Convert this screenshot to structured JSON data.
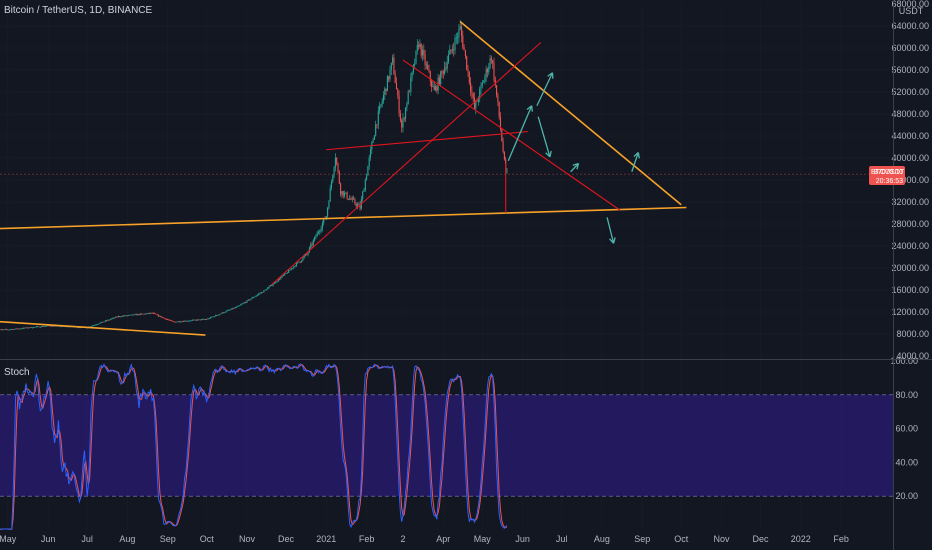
{
  "header": {
    "symbol_title": "Bitcoin / TetherUS, 1D, BINANCE",
    "currency": "USDT"
  },
  "price_badge": {
    "ticker": "BTCUSDT",
    "price": "37070.10",
    "countdown": "20:36:53",
    "color": "#ef5350"
  },
  "oscillator": {
    "label": "Stoch",
    "band_color": "#311b92",
    "k_color": "#2962ff",
    "d_color": "#ef5350"
  },
  "colors": {
    "background": "#131722",
    "up_candle": "#26a69a",
    "down_candle": "#ef5350",
    "orange_line": "#f7a128",
    "red_line": "#e0151e",
    "arrow": "#4db6ac",
    "grid": "#2a2e39"
  },
  "chart_data": [
    {
      "type": "candlestick",
      "title": "Bitcoin / TetherUS, 1D, BINANCE",
      "ylabel": "USDT",
      "y_scale": "linear",
      "ylim": [
        4000,
        68000
      ],
      "y_ticks": [
        4000,
        8000,
        12000,
        16000,
        20000,
        24000,
        28000,
        32000,
        36000,
        40000,
        44000,
        48000,
        52000,
        56000,
        60000,
        64000,
        68000
      ],
      "y_tick_labels": [
        "4000.00",
        "8000.00",
        "12000.00",
        "16000.00",
        "20000.00",
        "24000.00",
        "28000.00",
        "32000.00",
        "36000.00",
        "40000.00",
        "44000.00",
        "48000.00",
        "52000.00",
        "56000.00",
        "60000.00",
        "64000.00",
        "68000.00"
      ],
      "x_tick_labels": [
        "May",
        "Jun",
        "Jul",
        "Aug",
        "Sep",
        "Oct",
        "Nov",
        "Dec",
        "2021",
        "Feb",
        "2",
        "Apr",
        "May",
        "Jun",
        "Jul",
        "Aug",
        "Sep",
        "Oct",
        "Nov",
        "Dec",
        "2022",
        "Feb"
      ],
      "x_tick_dates": [
        "2020-05-01",
        "2020-06-01",
        "2020-07-01",
        "2020-08-01",
        "2020-09-01",
        "2020-10-01",
        "2020-11-01",
        "2020-12-01",
        "2021-01-01",
        "2021-02-01",
        "2021-03-01",
        "2021-04-01",
        "2021-05-01",
        "2021-06-01",
        "2021-07-01",
        "2021-08-01",
        "2021-09-01",
        "2021-10-01",
        "2021-11-01",
        "2021-12-01",
        "2022-01-01",
        "2022-02-01"
      ],
      "price_anchors": [
        {
          "date": "2020-05-01",
          "price": 8800
        },
        {
          "date": "2020-06-01",
          "price": 9500
        },
        {
          "date": "2020-07-01",
          "price": 9200
        },
        {
          "date": "2020-07-25",
          "price": 11200
        },
        {
          "date": "2020-08-20",
          "price": 11800
        },
        {
          "date": "2020-09-05",
          "price": 10200
        },
        {
          "date": "2020-10-01",
          "price": 10700
        },
        {
          "date": "2020-10-25",
          "price": 13000
        },
        {
          "date": "2020-11-15",
          "price": 16000
        },
        {
          "date": "2020-12-01",
          "price": 19000
        },
        {
          "date": "2020-12-17",
          "price": 22500
        },
        {
          "date": "2021-01-01",
          "price": 29500
        },
        {
          "date": "2021-01-08",
          "price": 40500
        },
        {
          "date": "2021-01-12",
          "price": 34000
        },
        {
          "date": "2021-01-27",
          "price": 31000
        },
        {
          "date": "2021-02-08",
          "price": 46000
        },
        {
          "date": "2021-02-21",
          "price": 57500
        },
        {
          "date": "2021-02-28",
          "price": 45500
        },
        {
          "date": "2021-03-13",
          "price": 61000
        },
        {
          "date": "2021-03-25",
          "price": 52000
        },
        {
          "date": "2021-04-14",
          "price": 63500
        },
        {
          "date": "2021-04-25",
          "price": 49000
        },
        {
          "date": "2021-05-08",
          "price": 58500
        },
        {
          "date": "2021-05-13",
          "price": 49500
        },
        {
          "date": "2021-05-19",
          "price": 37000
        },
        {
          "date": "2021-05-20",
          "price": 37070
        }
      ]
    },
    {
      "type": "line",
      "title": "Stoch",
      "ylim": [
        0,
        100
      ],
      "y_ticks": [
        20,
        40,
        60,
        80,
        100
      ],
      "y_tick_labels": [
        "20.00",
        "40.00",
        "60.00",
        "80.00",
        "100.00"
      ],
      "bands": [
        20,
        80
      ],
      "series": [
        {
          "color": "#2962ff"
        },
        {
          "color": "#ef5350"
        }
      ]
    }
  ],
  "annotations": {
    "orange_lines": [
      {
        "from": {
          "date": "2020-04-01",
          "price": 27000
        },
        "to": {
          "date": "2021-10-05",
          "price": 31000
        }
      },
      {
        "from": {
          "date": "2021-04-14",
          "price": 64800
        },
        "to": {
          "date": "2021-10-01",
          "price": 31500
        }
      },
      {
        "from": {
          "date": "2020-04-01",
          "price": 10600
        },
        "to": {
          "date": "2020-09-30",
          "price": 7800
        }
      }
    ],
    "red_lines": [
      {
        "from": {
          "date": "2021-01-01",
          "price": 41500
        },
        "to": {
          "date": "2021-06-05",
          "price": 44800
        }
      },
      {
        "from": {
          "date": "2021-03-01",
          "price": 57800
        },
        "to": {
          "date": "2021-08-15",
          "price": 30500
        }
      },
      {
        "from": {
          "date": "2020-11-20",
          "price": 17000
        },
        "to": {
          "date": "2021-06-15",
          "price": 61000
        }
      },
      {
        "from": {
          "date": "2021-05-19",
          "price": 30000
        },
        "to": {
          "date": "2021-05-19",
          "price": 39000
        }
      }
    ],
    "arrows": [
      {
        "from": {
          "date": "2021-05-21",
          "price": 39500
        },
        "to": {
          "date": "2021-06-08",
          "price": 49500
        }
      },
      {
        "from": {
          "date": "2021-06-12",
          "price": 49500
        },
        "to": {
          "date": "2021-06-24",
          "price": 55500
        }
      },
      {
        "from": {
          "date": "2021-06-13",
          "price": 47500
        },
        "to": {
          "date": "2021-06-22",
          "price": 40200
        }
      },
      {
        "from": {
          "date": "2021-07-08",
          "price": 37500
        },
        "to": {
          "date": "2021-07-14",
          "price": 39000
        }
      },
      {
        "from": {
          "date": "2021-08-24",
          "price": 37500
        },
        "to": {
          "date": "2021-08-29",
          "price": 41000
        }
      },
      {
        "from": {
          "date": "2021-08-05",
          "price": 29200
        },
        "to": {
          "date": "2021-08-10",
          "price": 24500
        }
      }
    ]
  }
}
